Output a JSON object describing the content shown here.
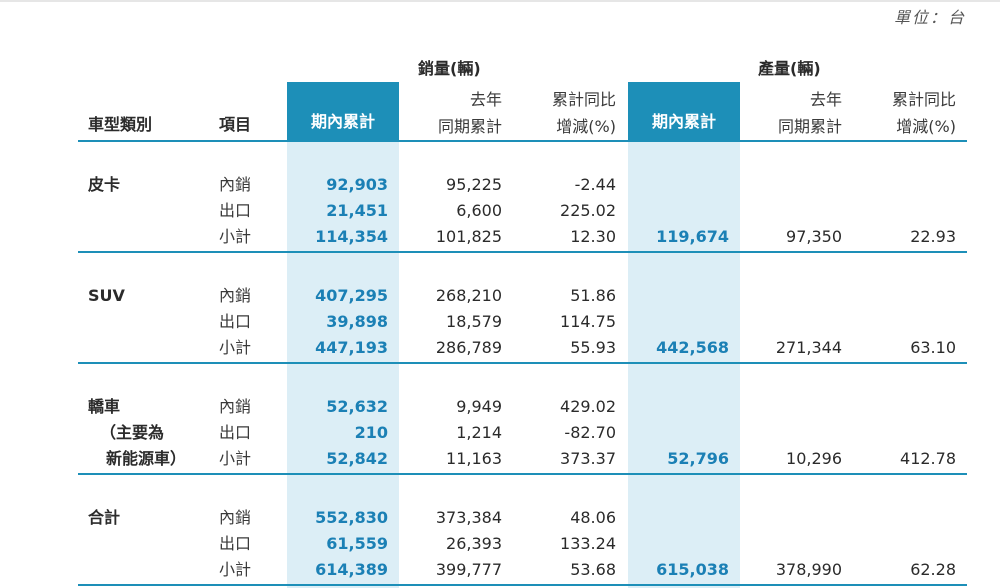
{
  "unit": "單位：台",
  "headers": {
    "sales_group": "銷量(輛)",
    "production_group": "產量(輛)",
    "vehicle_type": "車型類別",
    "item": "項目",
    "period_cumulative": "期內累計",
    "prev_year_line1": "去年",
    "prev_year_line2": "同期累計",
    "yoy_line1": "累計同比",
    "yoy_line2": "增減(%)"
  },
  "sections": [
    {
      "category_lines": [
        "皮卡"
      ],
      "rows": [
        {
          "item": "內銷",
          "sales_current": "92,903",
          "sales_prev": "95,225",
          "sales_yoy": "-2.44"
        },
        {
          "item": "出口",
          "sales_current": "21,451",
          "sales_prev": "6,600",
          "sales_yoy": "225.02"
        },
        {
          "item": "小計",
          "sales_current": "114,354",
          "sales_prev": "101,825",
          "sales_yoy": "12.30",
          "prod_current": "119,674",
          "prod_prev": "97,350",
          "prod_yoy": "22.93"
        }
      ]
    },
    {
      "category_lines": [
        "SUV"
      ],
      "rows": [
        {
          "item": "內銷",
          "sales_current": "407,295",
          "sales_prev": "268,210",
          "sales_yoy": "51.86"
        },
        {
          "item": "出口",
          "sales_current": "39,898",
          "sales_prev": "18,579",
          "sales_yoy": "114.75"
        },
        {
          "item": "小計",
          "sales_current": "447,193",
          "sales_prev": "286,789",
          "sales_yoy": "55.93",
          "prod_current": "442,568",
          "prod_prev": "271,344",
          "prod_yoy": "63.10"
        }
      ]
    },
    {
      "category_lines": [
        "轎車",
        "（主要為",
        "新能源車）"
      ],
      "rows": [
        {
          "item": "內銷",
          "sales_current": "52,632",
          "sales_prev": "9,949",
          "sales_yoy": "429.02"
        },
        {
          "item": "出口",
          "sales_current": "210",
          "sales_prev": "1,214",
          "sales_yoy": "-82.70"
        },
        {
          "item": "小計",
          "sales_current": "52,842",
          "sales_prev": "11,163",
          "sales_yoy": "373.37",
          "prod_current": "52,796",
          "prod_prev": "10,296",
          "prod_yoy": "412.78"
        }
      ]
    },
    {
      "category_lines": [
        "合計"
      ],
      "rows": [
        {
          "item": "內銷",
          "sales_current": "552,830",
          "sales_prev": "373,384",
          "sales_yoy": "48.06"
        },
        {
          "item": "出口",
          "sales_current": "61,559",
          "sales_prev": "26,393",
          "sales_yoy": "133.24"
        },
        {
          "item": "小計",
          "sales_current": "614,389",
          "sales_prev": "399,777",
          "sales_yoy": "53.68",
          "prod_current": "615,038",
          "prod_prev": "378,990",
          "prod_yoy": "62.28"
        }
      ]
    }
  ]
}
